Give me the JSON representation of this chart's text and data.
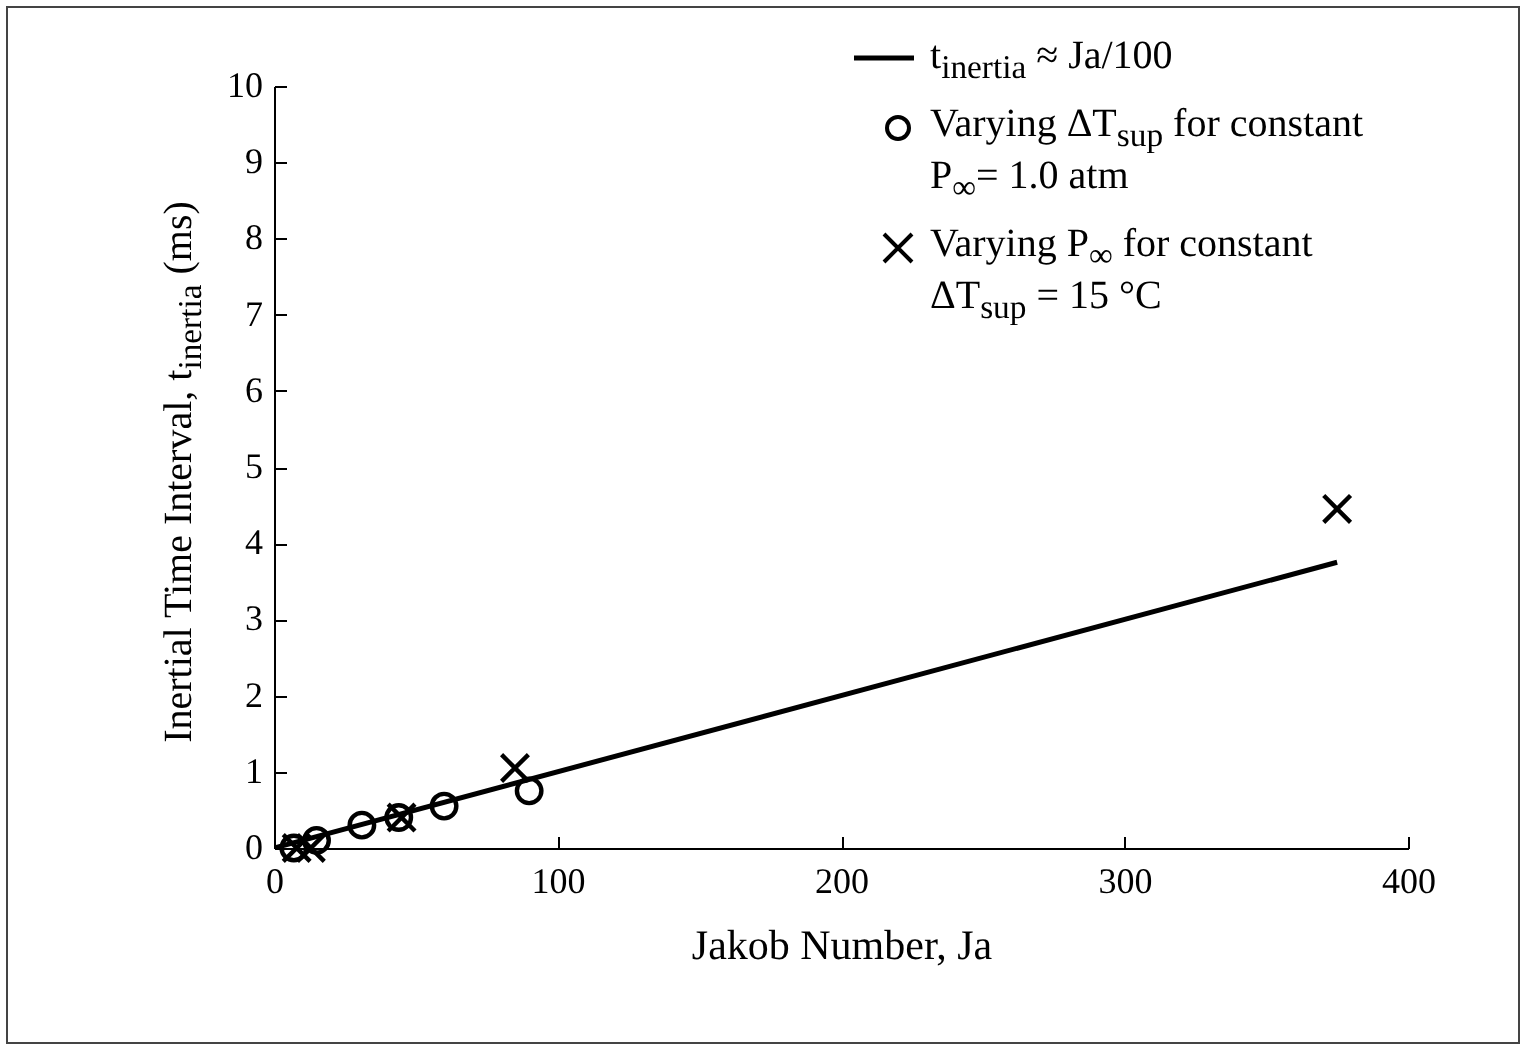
{
  "chart_data": {
    "type": "scatter",
    "xlabel": "Jakob Number, Ja",
    "ylabel": "Inertial Time Interval, t$_{inertia}$ (ms)",
    "xlim": [
      0,
      400
    ],
    "ylim": [
      0,
      10
    ],
    "xticks": [
      0,
      100,
      200,
      300,
      400
    ],
    "yticks": [
      0,
      1,
      2,
      3,
      4,
      5,
      6,
      7,
      8,
      9,
      10
    ],
    "grid": false,
    "legend": "top right",
    "series": [
      {
        "name": "t$_{inertia}$ ≈ Ja/100",
        "type": "line",
        "color": "#000000",
        "marker": "none",
        "line_style": "solid",
        "x": [
          0,
          375
        ],
        "values": [
          0,
          3.75
        ]
      },
      {
        "name": "Varying ΔT$_{sup}$ for constant P$_{∞}$= 1.0 atm",
        "color": "#000000",
        "marker": "circle",
        "x": [
          7,
          15,
          31,
          44,
          60,
          90
        ],
        "values": [
          0,
          0.1,
          0.3,
          0.4,
          0.55,
          0.75
        ]
      },
      {
        "name": "Varying P$_{∞}$ for constant ΔT$_{sup}$ = 15 °C",
        "color": "#000000",
        "marker": "cross",
        "x": [
          8,
          13,
          45,
          85,
          375
        ],
        "values": [
          0,
          0,
          0.4,
          1.05,
          4.45
        ]
      }
    ]
  }
}
